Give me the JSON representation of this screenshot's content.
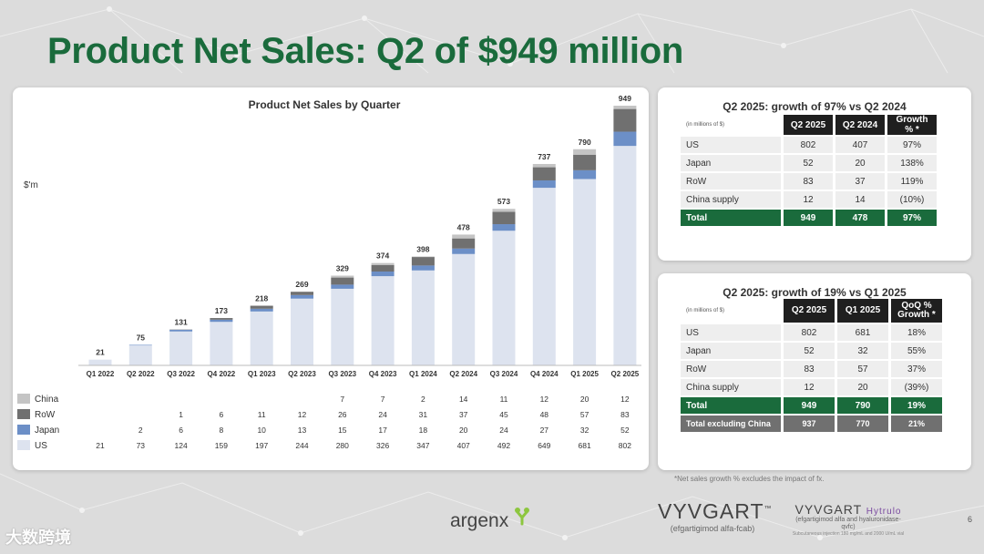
{
  "slide": {
    "title": "Product Net Sales: Q2 of $949 million",
    "page_number": "6",
    "footnote": "*Net sales growth % excludes the impact of fx."
  },
  "colors": {
    "title_green": "#1a6b3c",
    "us": "#dde3ef",
    "japan": "#6c8fc7",
    "row": "#707070",
    "china": "#c4c4c4",
    "total_row": "#1a6b3c",
    "header_row": "#1f1f1f"
  },
  "chart_data": {
    "type": "bar",
    "stacked": true,
    "title": "Product Net Sales by Quarter",
    "ylabel": "$'m",
    "xlabel": "",
    "ylim": [
      0,
      949
    ],
    "grid": false,
    "legend": "table-below",
    "categories": [
      "Q1 2022",
      "Q2 2022",
      "Q3 2022",
      "Q4 2022",
      "Q1 2023",
      "Q2 2023",
      "Q3 2023",
      "Q4 2023",
      "Q1 2024",
      "Q2 2024",
      "Q3 2024",
      "Q4 2024",
      "Q1 2025",
      "Q2 2025"
    ],
    "totals": [
      "21",
      "75",
      "131",
      "173",
      "218",
      "269",
      "329",
      "374",
      "398",
      "478",
      "573",
      "737",
      "790",
      "949"
    ],
    "series": [
      {
        "name": "US",
        "values": [
          21,
          73,
          124,
          159,
          197,
          244,
          280,
          326,
          347,
          407,
          492,
          649,
          681,
          802
        ],
        "color": "#dde3ef"
      },
      {
        "name": "Japan",
        "values": [
          null,
          2,
          6,
          8,
          10,
          13,
          15,
          17,
          18,
          20,
          24,
          27,
          32,
          52
        ],
        "color": "#6c8fc7"
      },
      {
        "name": "RoW",
        "values": [
          null,
          null,
          1,
          6,
          11,
          12,
          26,
          24,
          31,
          37,
          45,
          48,
          57,
          83
        ],
        "color": "#707070"
      },
      {
        "name": "China",
        "values": [
          null,
          null,
          null,
          null,
          null,
          null,
          7,
          7,
          2,
          14,
          11,
          12,
          20,
          12
        ],
        "color": "#c4c4c4"
      }
    ]
  },
  "table1": {
    "title": "Q2 2025: growth of 97% vs Q2 2024",
    "note": "(in millions of $)",
    "headers": [
      "Q2 2025",
      "Q2 2024",
      "Growth % *"
    ],
    "rows": [
      {
        "label": "US",
        "c1": "802",
        "c2": "407",
        "c3": "97%"
      },
      {
        "label": "Japan",
        "c1": "52",
        "c2": "20",
        "c3": "138%"
      },
      {
        "label": "RoW",
        "c1": "83",
        "c2": "37",
        "c3": "119%"
      },
      {
        "label": "China supply",
        "c1": "12",
        "c2": "14",
        "c3": "(10%)"
      }
    ],
    "total": {
      "label": "Total",
      "c1": "949",
      "c2": "478",
      "c3": "97%"
    }
  },
  "table2": {
    "title": "Q2 2025: growth of 19% vs Q1 2025",
    "note": "(in millions of $)",
    "headers": [
      "Q2 2025",
      "Q1 2025",
      "QoQ % Growth *"
    ],
    "rows": [
      {
        "label": "US",
        "c1": "802",
        "c2": "681",
        "c3": "18%"
      },
      {
        "label": "Japan",
        "c1": "52",
        "c2": "32",
        "c3": "55%"
      },
      {
        "label": "RoW",
        "c1": "83",
        "c2": "57",
        "c3": "37%"
      },
      {
        "label": "China supply",
        "c1": "12",
        "c2": "20",
        "c3": "(39%)"
      }
    ],
    "total": {
      "label": "Total",
      "c1": "949",
      "c2": "790",
      "c3": "19%"
    },
    "excl_china": {
      "label": "Total excluding China",
      "c1": "937",
      "c2": "770",
      "c3": "21%"
    }
  },
  "logos": {
    "argenx": "argenx",
    "vyvgart_name": "VYVGART",
    "vyvgart_tm": "™",
    "vyvgart_sub": "(efgartigimod alfa-fcab)",
    "hytrulo_name": "VYVGART",
    "hytrulo_suffix": "Hytrulo",
    "hytrulo_sub": "(efgartigimod alfa and hyaluronidase-qvfc)",
    "hytrulo_sub2": "Subcutaneous injection 180 mg/mL and 2000 U/mL vial",
    "watermark": "大数跨境"
  }
}
